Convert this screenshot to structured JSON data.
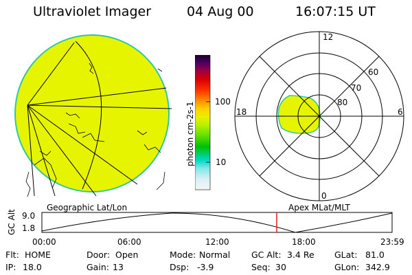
{
  "header": {
    "instrument": "Ultraviolet Imager",
    "date": "04 Aug 00",
    "time": "16:07:15 UT"
  },
  "left_panel": {
    "caption": "Geographic Lat/Lon"
  },
  "right_panel": {
    "caption": "Apex MLat/MLT",
    "mlt_labels": {
      "top": "12",
      "bottom": "0",
      "left": "18",
      "right": "6"
    },
    "mlat_labels": [
      "60",
      "70",
      "80"
    ]
  },
  "colorbar": {
    "unit_label": "photon cm-2s-1",
    "ticks": [
      "100",
      "10"
    ],
    "scale": "log",
    "colors": [
      "#f4f4f4",
      "#d8f0f4",
      "#7fe8e8",
      "#00d8c8",
      "#00c000",
      "#60e000",
      "#b8f000",
      "#e8f000",
      "#ffd000",
      "#ff9000",
      "#ff3000",
      "#d80000",
      "#a00040",
      "#500060",
      "#1a0030"
    ]
  },
  "gc_alt_plot": {
    "ylabel": "GC Alt",
    "yticks": [
      "9.0",
      "1.8"
    ],
    "xticks": [
      "00:00",
      "06:00",
      "12:00",
      "18:00",
      "23:59"
    ],
    "current_time_marker": "16:07:15"
  },
  "info": {
    "flt_label": "Flt:",
    "flt_value": "HOME",
    "door_label": "Door:",
    "door_value": "Open",
    "mode_label": "Mode:",
    "mode_value": "Normal",
    "gcalt_label": "GC Alt:",
    "gcalt_value": "3.4 Re",
    "glat_label": "GLat:",
    "glat_value": "81.0",
    "ip_label": "IP:",
    "ip_value": "18.0",
    "gain_label": "Gain:",
    "gain_value": "13",
    "dsp_label": "Dsp:",
    "dsp_value": "-3.9",
    "seq_label": "Seq:",
    "seq_value": "30",
    "glon_label": "GLon:",
    "glon_value": "342.9"
  },
  "colors": {
    "emission": "#e6f400",
    "emission_edge": "#2ec8a0",
    "marker": "#e02020"
  }
}
